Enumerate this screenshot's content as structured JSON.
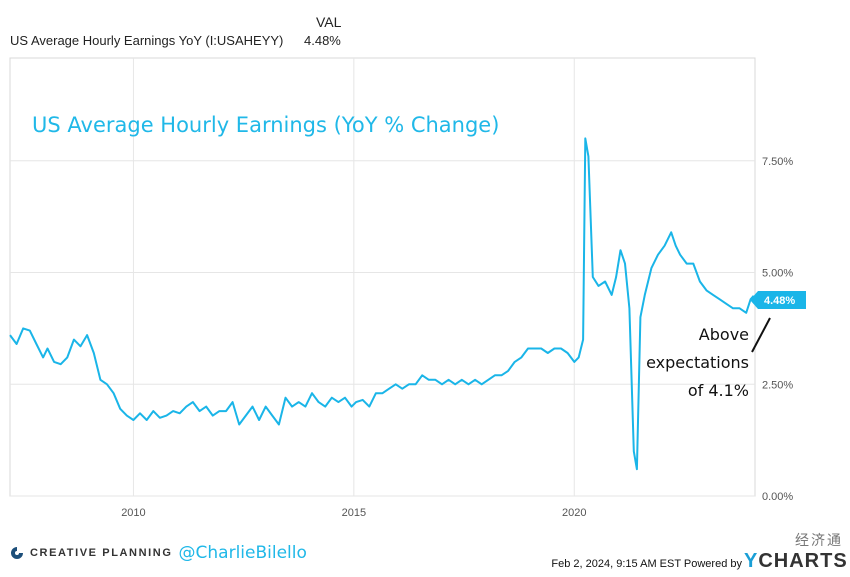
{
  "legend": {
    "header": "VAL",
    "series_name": "US Average Hourly Earnings YoY (I:USAHEYY)",
    "series_value": "4.48%"
  },
  "footer": {
    "brand": "CREATIVE PLANNING",
    "handle": "@CharlieBilello",
    "timestamp": "Feb 2, 2024, 9:15 AM EST Powered by",
    "ycharts_y": "Y",
    "ycharts_rest": "CHARTS",
    "watermark": "经济通"
  },
  "colors": {
    "line": "#1ab5e8",
    "badge": "#1ab5e8",
    "grid": "#e6e6e6",
    "axis_text": "#555555"
  },
  "chart_data": {
    "type": "line",
    "title": "US Average Hourly Earnings  (YoY % Change)",
    "annotation": [
      "Above",
      "expectations",
      "of 4.1%"
    ],
    "last_value_label": "4.48%",
    "xlim": [
      2007.2,
      2024.1
    ],
    "ylim": [
      0,
      9.8
    ],
    "x_ticks": [
      {
        "v": 2010,
        "label": "2010"
      },
      {
        "v": 2015,
        "label": "2015"
      },
      {
        "v": 2020,
        "label": "2020"
      }
    ],
    "y_ticks": [
      {
        "v": 0,
        "label": "0.00%"
      },
      {
        "v": 2.5,
        "label": "2.50%"
      },
      {
        "v": 5.0,
        "label": "5.00%"
      },
      {
        "v": 7.5,
        "label": "7.50%"
      }
    ],
    "grid": true,
    "series": [
      {
        "x": [
          2007.2,
          2007.35,
          2007.5,
          2007.65,
          2007.8,
          2007.95,
          2008.05,
          2008.2,
          2008.35,
          2008.5,
          2008.65,
          2008.8,
          2008.95,
          2009.1,
          2009.25,
          2009.4,
          2009.55,
          2009.7,
          2009.85,
          2010.0,
          2010.15,
          2010.3,
          2010.45,
          2010.6,
          2010.75,
          2010.9,
          2011.05,
          2011.2,
          2011.35,
          2011.5,
          2011.65,
          2011.8,
          2011.95,
          2012.1,
          2012.25,
          2012.4,
          2012.55,
          2012.7,
          2012.85,
          2013.0,
          2013.15,
          2013.3,
          2013.45,
          2013.6,
          2013.75,
          2013.9,
          2014.05,
          2014.2,
          2014.35,
          2014.5,
          2014.65,
          2014.8,
          2014.95,
          2015.05,
          2015.2,
          2015.35,
          2015.5,
          2015.65,
          2015.8,
          2015.95,
          2016.1,
          2016.25,
          2016.4,
          2016.55,
          2016.7,
          2016.85,
          2017.0,
          2017.15,
          2017.3,
          2017.45,
          2017.6,
          2017.75,
          2017.9,
          2018.05,
          2018.2,
          2018.35,
          2018.5,
          2018.65,
          2018.8,
          2018.95,
          2019.1,
          2019.25,
          2019.4,
          2019.55,
          2019.7,
          2019.85,
          2020.0,
          2020.1,
          2020.2,
          2020.25,
          2020.32,
          2020.42,
          2020.55,
          2020.7,
          2020.85,
          2020.95,
          2021.05,
          2021.15,
          2021.25,
          2021.35,
          2021.42,
          2021.5,
          2021.6,
          2021.75,
          2021.9,
          2022.05,
          2022.2,
          2022.3,
          2022.4,
          2022.55,
          2022.7,
          2022.85,
          2023.0,
          2023.15,
          2023.3,
          2023.45,
          2023.6,
          2023.75,
          2023.9,
          2024.0,
          2024.07
        ],
        "y": [
          3.6,
          3.4,
          3.75,
          3.7,
          3.4,
          3.1,
          3.3,
          3.0,
          2.95,
          3.1,
          3.5,
          3.35,
          3.6,
          3.2,
          2.6,
          2.5,
          2.3,
          1.95,
          1.8,
          1.7,
          1.85,
          1.7,
          1.9,
          1.75,
          1.8,
          1.9,
          1.85,
          2.0,
          2.1,
          1.9,
          2.0,
          1.8,
          1.9,
          1.9,
          2.1,
          1.6,
          1.8,
          2.0,
          1.7,
          2.0,
          1.8,
          1.6,
          2.2,
          2.0,
          2.1,
          2.0,
          2.3,
          2.1,
          2.0,
          2.2,
          2.1,
          2.2,
          2.0,
          2.1,
          2.15,
          2.0,
          2.3,
          2.3,
          2.4,
          2.5,
          2.4,
          2.5,
          2.5,
          2.7,
          2.6,
          2.6,
          2.5,
          2.6,
          2.5,
          2.6,
          2.5,
          2.6,
          2.5,
          2.6,
          2.7,
          2.7,
          2.8,
          3.0,
          3.1,
          3.3,
          3.3,
          3.3,
          3.2,
          3.3,
          3.3,
          3.2,
          3.0,
          3.1,
          3.5,
          8.0,
          7.6,
          4.9,
          4.7,
          4.8,
          4.5,
          4.9,
          5.5,
          5.2,
          4.2,
          1.0,
          0.6,
          4.0,
          4.5,
          5.1,
          5.4,
          5.6,
          5.9,
          5.6,
          5.4,
          5.2,
          5.2,
          4.8,
          4.6,
          4.5,
          4.4,
          4.3,
          4.2,
          4.2,
          4.1,
          4.4,
          4.48
        ]
      }
    ]
  }
}
